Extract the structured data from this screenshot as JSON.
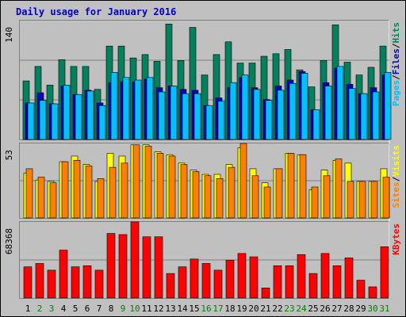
{
  "chart_data": [
    {
      "type": "bar",
      "panel": "hits-files-pages",
      "title": "Daily usage for January 2016",
      "y_max_label": "140",
      "ylim": [
        0,
        140
      ],
      "right_label_parts": [
        "Pages",
        "/",
        "Files",
        "/",
        "Hits"
      ],
      "right_label_colors": [
        "#00c0ff",
        "#000000",
        "#0000c0",
        "#000000",
        "#008060"
      ],
      "categories": [
        "1",
        "2",
        "3",
        "4",
        "5",
        "6",
        "7",
        "8",
        "9",
        "10",
        "11",
        "12",
        "13",
        "14",
        "15",
        "16",
        "17",
        "18",
        "19",
        "20",
        "21",
        "22",
        "23",
        "24",
        "25",
        "26",
        "27",
        "28",
        "29",
        "30",
        "31"
      ],
      "weekend_days": [
        "2",
        "3",
        "9",
        "10",
        "16",
        "17",
        "23",
        "24",
        "30",
        "31"
      ],
      "series": [
        {
          "name": "Hits",
          "color": "#00805c",
          "values": [
            69,
            86,
            64,
            94,
            86,
            86,
            59,
            110,
            110,
            96,
            100,
            92,
            136,
            93,
            132,
            76,
            100,
            115,
            90,
            90,
            98,
            101,
            106,
            82,
            62,
            93,
            135,
            91,
            76,
            85,
            110
          ]
        },
        {
          "name": "Files",
          "color": "#0000c0",
          "values": [
            43,
            55,
            42,
            63,
            53,
            58,
            43,
            67,
            68,
            68,
            71,
            61,
            63,
            59,
            58,
            40,
            49,
            61,
            73,
            61,
            47,
            63,
            70,
            80,
            35,
            67,
            84,
            65,
            54,
            61,
            76
          ]
        },
        {
          "name": "Pages",
          "color": "#00c0ff",
          "values": [
            43,
            46,
            42,
            64,
            53,
            57,
            40,
            79,
            73,
            70,
            73,
            56,
            63,
            54,
            54,
            40,
            45,
            67,
            76,
            59,
            46,
            58,
            66,
            78,
            35,
            63,
            86,
            60,
            54,
            56,
            79
          ]
        }
      ]
    },
    {
      "type": "bar",
      "panel": "visits-sites",
      "y_max_label": "53",
      "ylim": [
        0,
        53
      ],
      "right_label_parts": [
        "Sites",
        "/",
        "Visits"
      ],
      "right_label_colors": [
        "#ff8000",
        "#000000",
        "#ffff00"
      ],
      "categories": [
        "1",
        "2",
        "3",
        "4",
        "5",
        "6",
        "7",
        "8",
        "9",
        "10",
        "11",
        "12",
        "13",
        "14",
        "15",
        "16",
        "17",
        "18",
        "19",
        "20",
        "21",
        "22",
        "23",
        "24",
        "25",
        "26",
        "27",
        "28",
        "29",
        "30",
        "31"
      ],
      "series": [
        {
          "name": "Visits",
          "color": "#ffff00",
          "values": [
            32,
            27,
            26,
            40,
            44,
            38,
            26,
            46,
            44,
            52,
            52,
            47,
            45,
            39,
            34,
            31,
            31,
            38,
            50,
            35,
            25,
            35,
            46,
            45,
            20,
            34,
            41,
            39,
            26,
            26,
            35
          ]
        },
        {
          "name": "Sites",
          "color": "#ff8000",
          "values": [
            35,
            29,
            25,
            40,
            41,
            37,
            28,
            36,
            39,
            52,
            51,
            46,
            44,
            38,
            33,
            30,
            28,
            36,
            53,
            30,
            22,
            35,
            46,
            45,
            22,
            30,
            42,
            26,
            26,
            26,
            29
          ]
        }
      ]
    },
    {
      "type": "bar",
      "panel": "kbytes",
      "y_max_label": "68368",
      "ylim": [
        0,
        68368
      ],
      "right_label_parts": [
        "KBytes"
      ],
      "right_label_colors": [
        "#ff0000"
      ],
      "categories": [
        "1",
        "2",
        "3",
        "4",
        "5",
        "6",
        "7",
        "8",
        "9",
        "10",
        "11",
        "12",
        "13",
        "14",
        "15",
        "16",
        "17",
        "18",
        "19",
        "20",
        "21",
        "22",
        "23",
        "24",
        "25",
        "26",
        "27",
        "28",
        "29",
        "30",
        "31"
      ],
      "series": [
        {
          "name": "KBytes",
          "color": "#ff0000",
          "values": [
            28000,
            31000,
            25000,
            43000,
            28000,
            29000,
            25000,
            58000,
            57000,
            68368,
            55000,
            55000,
            22000,
            28000,
            35000,
            31000,
            25000,
            34000,
            40000,
            37000,
            9000,
            29000,
            29000,
            39000,
            22000,
            40000,
            29000,
            36000,
            16000,
            10000,
            46000
          ]
        }
      ]
    }
  ]
}
